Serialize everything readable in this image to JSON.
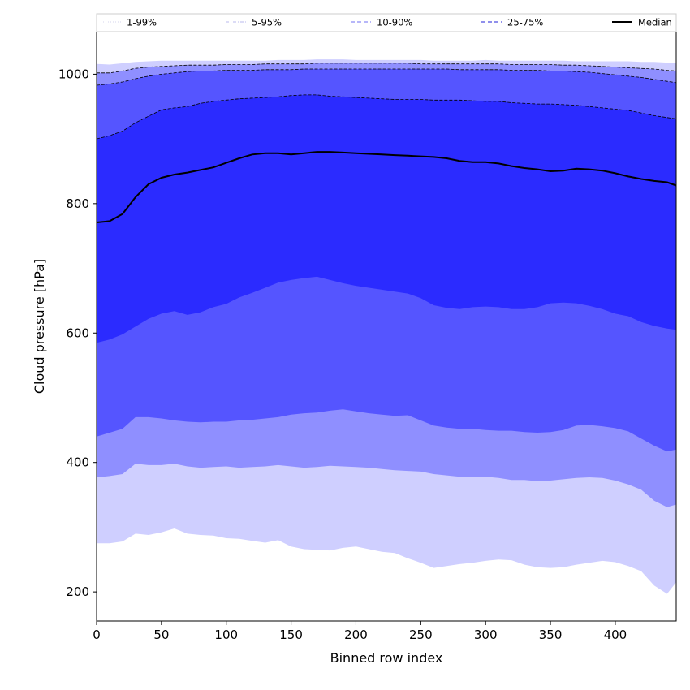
{
  "chart_data": {
    "type": "area",
    "xlabel": "Binned row index",
    "ylabel": "Cloud pressure [hPa]",
    "xlim": [
      0,
      447
    ],
    "ylim": [
      155,
      1067
    ],
    "xticks": [
      0,
      50,
      100,
      150,
      200,
      250,
      300,
      350,
      400
    ],
    "yticks": [
      200,
      400,
      600,
      800,
      1000
    ],
    "grid": false,
    "legend_position": "top",
    "legend": [
      {
        "label": "1-99%",
        "style": "dotted-thin",
        "color": "#d5d5ee"
      },
      {
        "label": "5-95%",
        "style": "dashdot-thin",
        "color": "#b9b9ee"
      },
      {
        "label": "10-90%",
        "style": "dashed",
        "color": "#8c8cf5"
      },
      {
        "label": "25-75%",
        "style": "dashed",
        "color": "#4d4de0"
      },
      {
        "label": "Median",
        "style": "solid",
        "color": "#000000"
      }
    ],
    "x": [
      0,
      10,
      20,
      30,
      40,
      50,
      60,
      70,
      80,
      90,
      100,
      110,
      120,
      130,
      140,
      150,
      160,
      170,
      180,
      190,
      200,
      210,
      220,
      230,
      240,
      250,
      260,
      270,
      280,
      290,
      300,
      310,
      320,
      330,
      340,
      350,
      360,
      370,
      380,
      390,
      400,
      410,
      420,
      430,
      440,
      447
    ],
    "series": [
      {
        "name": "1-99%",
        "color": "#cfcfff",
        "lower": [
          275,
          275,
          278,
          290,
          288,
          292,
          298,
          290,
          288,
          287,
          283,
          282,
          279,
          276,
          280,
          270,
          266,
          265,
          264,
          268,
          270,
          266,
          262,
          260,
          252,
          245,
          237,
          240,
          243,
          245,
          248,
          250,
          249,
          242,
          238,
          237,
          238,
          242,
          245,
          248,
          246,
          240,
          232,
          210,
          197,
          215
        ],
        "upper": [
          1016,
          1015,
          1017,
          1019,
          1020,
          1021,
          1021,
          1021,
          1021,
          1021,
          1021,
          1021,
          1021,
          1021,
          1022,
          1022,
          1022,
          1023,
          1023,
          1023,
          1022,
          1022,
          1022,
          1022,
          1022,
          1022,
          1021,
          1021,
          1021,
          1021,
          1022,
          1021,
          1021,
          1021,
          1021,
          1021,
          1021,
          1020,
          1020,
          1020,
          1020,
          1020,
          1019,
          1019,
          1018,
          1018
        ]
      },
      {
        "name": "5-95%",
        "color": "#8f8fff",
        "lower": [
          377,
          379,
          382,
          398,
          396,
          396,
          398,
          394,
          392,
          393,
          394,
          392,
          393,
          394,
          396,
          394,
          392,
          393,
          395,
          394,
          393,
          392,
          390,
          388,
          387,
          386,
          382,
          380,
          378,
          377,
          378,
          376,
          373,
          373,
          371,
          372,
          374,
          376,
          377,
          376,
          372,
          366,
          358,
          341,
          331,
          335
        ],
        "upper": [
          1002,
          1002,
          1005,
          1009,
          1011,
          1012,
          1013,
          1014,
          1014,
          1014,
          1015,
          1015,
          1015,
          1016,
          1016,
          1016,
          1016,
          1017,
          1017,
          1017,
          1017,
          1017,
          1017,
          1017,
          1017,
          1016,
          1016,
          1016,
          1016,
          1016,
          1016,
          1016,
          1015,
          1015,
          1015,
          1015,
          1014,
          1014,
          1013,
          1012,
          1011,
          1010,
          1009,
          1008,
          1006,
          1005
        ]
      },
      {
        "name": "10-90%",
        "color": "#5555ff",
        "lower": [
          440,
          446,
          452,
          470,
          470,
          468,
          465,
          463,
          462,
          463,
          463,
          465,
          466,
          468,
          470,
          474,
          476,
          477,
          480,
          482,
          479,
          476,
          474,
          472,
          473,
          465,
          457,
          454,
          452,
          452,
          450,
          449,
          449,
          447,
          446,
          447,
          450,
          457,
          458,
          456,
          453,
          448,
          437,
          426,
          417,
          420
        ],
        "upper": [
          983,
          985,
          988,
          993,
          997,
          1000,
          1002,
          1004,
          1005,
          1005,
          1006,
          1006,
          1006,
          1007,
          1007,
          1007,
          1008,
          1008,
          1008,
          1008,
          1008,
          1008,
          1008,
          1008,
          1008,
          1008,
          1008,
          1008,
          1007,
          1007,
          1007,
          1007,
          1006,
          1006,
          1006,
          1005,
          1005,
          1004,
          1003,
          1001,
          999,
          997,
          995,
          992,
          989,
          987
        ]
      },
      {
        "name": "25-75%",
        "color": "#2b2bff",
        "lower": [
          585,
          590,
          598,
          610,
          622,
          630,
          634,
          628,
          632,
          640,
          645,
          655,
          662,
          670,
          678,
          682,
          685,
          687,
          682,
          677,
          673,
          670,
          667,
          664,
          661,
          654,
          643,
          639,
          637,
          640,
          641,
          640,
          637,
          637,
          640,
          646,
          647,
          646,
          642,
          637,
          630,
          626,
          617,
          611,
          607,
          605
        ],
        "upper": [
          900,
          905,
          912,
          925,
          935,
          945,
          948,
          950,
          955,
          958,
          960,
          962,
          963,
          964,
          965,
          967,
          968,
          968,
          966,
          965,
          964,
          963,
          962,
          961,
          961,
          961,
          960,
          960,
          960,
          959,
          958,
          958,
          956,
          955,
          954,
          954,
          953,
          952,
          950,
          948,
          946,
          944,
          940,
          936,
          933,
          931
        ]
      }
    ],
    "median": {
      "name": "Median",
      "color": "#000000",
      "values": [
        771,
        773,
        784,
        810,
        830,
        840,
        845,
        848,
        852,
        856,
        863,
        870,
        876,
        878,
        878,
        876,
        878,
        880,
        880,
        879,
        878,
        877,
        876,
        875,
        874,
        873,
        872,
        870,
        866,
        864,
        864,
        862,
        858,
        855,
        853,
        850,
        851,
        854,
        853,
        851,
        847,
        842,
        838,
        835,
        833,
        828
      ]
    }
  }
}
